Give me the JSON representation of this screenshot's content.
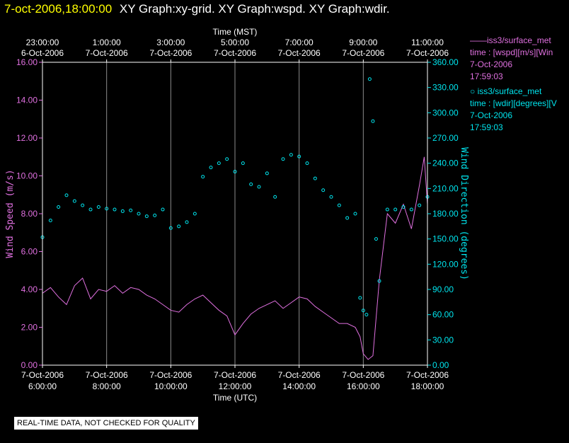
{
  "header": {
    "timestamp": "7-oct-2006,18:00:00",
    "graphs": "XY Graph:xy-grid.  XY Graph:wspd.  XY Graph:wdir."
  },
  "legend": [
    {
      "line1": "——iss3/surface_met",
      "line2": "time : [wspd][m/s][Win",
      "line3": "7-Oct-2006",
      "line4": "17:59:03",
      "color": "#e070e0"
    },
    {
      "line1": "○ iss3/surface_met",
      "line2": "time : [wdir][degrees][V",
      "line3": "7-Oct-2006",
      "line4": "17:59:03",
      "color": "#00e5ee"
    }
  ],
  "notice": "REAL-TIME DATA, NOT CHECKED FOR QUALITY",
  "chart_data": {
    "type": "line",
    "top_axis": {
      "label": "Time (MST)",
      "ticks": [
        {
          "time": "23:00:00",
          "date": "6-Oct-2006"
        },
        {
          "time": "1:00:00",
          "date": "7-Oct-2006"
        },
        {
          "time": "3:00:00",
          "date": "7-Oct-2006"
        },
        {
          "time": "5:00:00",
          "date": "7-Oct-2006"
        },
        {
          "time": "7:00:00",
          "date": "7-Oct-2006"
        },
        {
          "time": "9:00:00",
          "date": "7-Oct-2006"
        },
        {
          "time": "11:00:00",
          "date": "7-Oct-2006"
        }
      ]
    },
    "bottom_axis": {
      "label": "Time (UTC)",
      "ticks": [
        {
          "date": "7-Oct-2006",
          "time": "6:00:00"
        },
        {
          "date": "7-Oct-2006",
          "time": "8:00:00"
        },
        {
          "date": "7-Oct-2006",
          "time": "10:00:00"
        },
        {
          "date": "7-Oct-2006",
          "time": "12:00:00"
        },
        {
          "date": "7-Oct-2006",
          "time": "14:00:00"
        },
        {
          "date": "7-Oct-2006",
          "time": "16:00:00"
        },
        {
          "date": "7-Oct-2006",
          "time": "18:00:00"
        }
      ],
      "xlim_hours_utc": [
        6,
        18
      ]
    },
    "left_axis": {
      "label": "Wind Speed (m/s)",
      "ylim": [
        0,
        16
      ],
      "ticks": [
        "0.00",
        "2.00",
        "4.00",
        "6.00",
        "8.00",
        "10.00",
        "12.00",
        "14.00",
        "16.00"
      ],
      "color": "#e070e0"
    },
    "right_axis": {
      "label": "Wind Direction (degrees)",
      "ylim": [
        0,
        360
      ],
      "ticks": [
        "0.00",
        "30.00",
        "60.00",
        "90.00",
        "120.00",
        "150.00",
        "180.00",
        "210.00",
        "240.00",
        "270.00",
        "300.00",
        "330.00",
        "360.00"
      ],
      "color": "#00e5ee"
    },
    "grid": true,
    "series": [
      {
        "name": "iss3/surface_met time : [wspd][m/s][Win",
        "kind": "line",
        "axis": "left",
        "color": "#e070e0",
        "x": [
          6.0,
          6.25,
          6.5,
          6.75,
          7.0,
          7.25,
          7.5,
          7.75,
          8.0,
          8.25,
          8.5,
          8.75,
          9.0,
          9.25,
          9.5,
          9.75,
          10.0,
          10.25,
          10.5,
          10.75,
          11.0,
          11.25,
          11.5,
          11.75,
          12.0,
          12.25,
          12.5,
          12.75,
          13.0,
          13.25,
          13.5,
          13.75,
          14.0,
          14.25,
          14.5,
          14.75,
          15.0,
          15.25,
          15.5,
          15.75,
          15.9,
          16.0,
          16.15,
          16.3,
          16.5,
          16.75,
          17.0,
          17.25,
          17.5,
          17.75,
          17.9,
          18.0
        ],
        "y": [
          3.8,
          4.1,
          3.6,
          3.2,
          4.2,
          4.6,
          3.5,
          4.0,
          3.9,
          4.2,
          3.8,
          4.1,
          4.0,
          3.7,
          3.5,
          3.2,
          2.9,
          2.8,
          3.2,
          3.5,
          3.7,
          3.3,
          2.9,
          2.6,
          1.6,
          2.2,
          2.7,
          3.0,
          3.2,
          3.4,
          3.0,
          3.3,
          3.6,
          3.5,
          3.1,
          2.8,
          2.5,
          2.2,
          2.2,
          2.0,
          1.5,
          0.6,
          0.3,
          0.5,
          4.5,
          8.0,
          7.5,
          8.5,
          7.2,
          9.5,
          11.0,
          8.5
        ]
      },
      {
        "name": "iss3/surface_met time : [wdir][degrees][V",
        "kind": "scatter",
        "axis": "right",
        "color": "#00e5ee",
        "x": [
          6.0,
          6.25,
          6.5,
          6.75,
          7.0,
          7.25,
          7.5,
          7.75,
          8.0,
          8.25,
          8.5,
          8.75,
          9.0,
          9.25,
          9.5,
          9.75,
          10.0,
          10.25,
          10.5,
          10.75,
          11.0,
          11.25,
          11.5,
          11.75,
          12.0,
          12.25,
          12.5,
          12.75,
          13.0,
          13.25,
          13.5,
          13.75,
          14.0,
          14.25,
          14.5,
          14.75,
          15.0,
          15.25,
          15.5,
          15.75,
          15.9,
          16.0,
          16.1,
          16.2,
          16.3,
          16.4,
          16.5,
          16.75,
          17.0,
          17.25,
          17.5,
          17.75,
          18.0
        ],
        "y": [
          152,
          172,
          188,
          202,
          195,
          190,
          185,
          188,
          186,
          185,
          183,
          184,
          180,
          177,
          178,
          185,
          163,
          165,
          170,
          180,
          224,
          235,
          240,
          245,
          230,
          240,
          215,
          212,
          228,
          200,
          245,
          250,
          248,
          240,
          222,
          208,
          200,
          190,
          175,
          180,
          80,
          65,
          60,
          340,
          290,
          150,
          100,
          185,
          185,
          188,
          185,
          190,
          200
        ]
      }
    ]
  }
}
